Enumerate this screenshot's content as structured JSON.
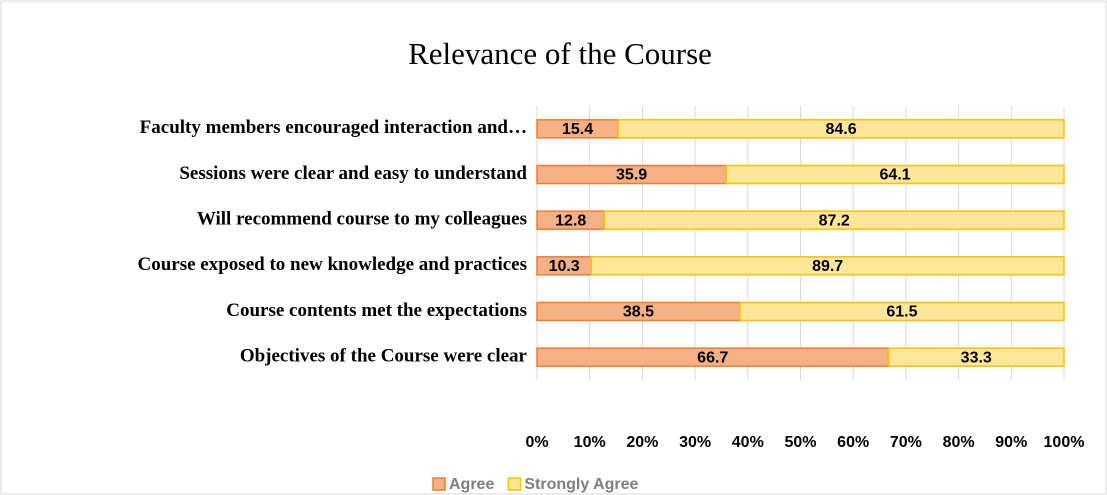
{
  "chart_data": {
    "type": "stacked_barh",
    "title": "Relevance of the Course",
    "categories": [
      "Faculty members encouraged interaction and…",
      "Sessions were clear and easy to understand",
      "Will recommend course to my colleagues",
      "Course exposed to new knowledge and practices",
      "Course contents met the expectations",
      "Objectives of the Course were clear"
    ],
    "series": [
      {
        "name": "Agree",
        "color": "#f4b183",
        "edge_color": "#ed7d31",
        "values": [
          15.4,
          35.9,
          12.8,
          10.3,
          38.5,
          66.7
        ]
      },
      {
        "name": "Strongly Agree",
        "color": "#ffe699",
        "edge_color": "#ffc000",
        "values": [
          84.6,
          64.1,
          87.2,
          89.7,
          61.5,
          33.3
        ]
      }
    ],
    "xlim": [
      0,
      100
    ],
    "xticks": [
      {
        "value": 0,
        "label": "0%"
      },
      {
        "value": 10,
        "label": "10%"
      },
      {
        "value": 20,
        "label": "20%"
      },
      {
        "value": 30,
        "label": "30%"
      },
      {
        "value": 40,
        "label": "40%"
      },
      {
        "value": 50,
        "label": "50%"
      },
      {
        "value": 60,
        "label": "60%"
      },
      {
        "value": 70,
        "label": "70%"
      },
      {
        "value": 80,
        "label": "80%"
      },
      {
        "value": 90,
        "label": "90%"
      },
      {
        "value": 100,
        "label": "100%"
      }
    ],
    "grid": true,
    "legend": "bottom"
  }
}
